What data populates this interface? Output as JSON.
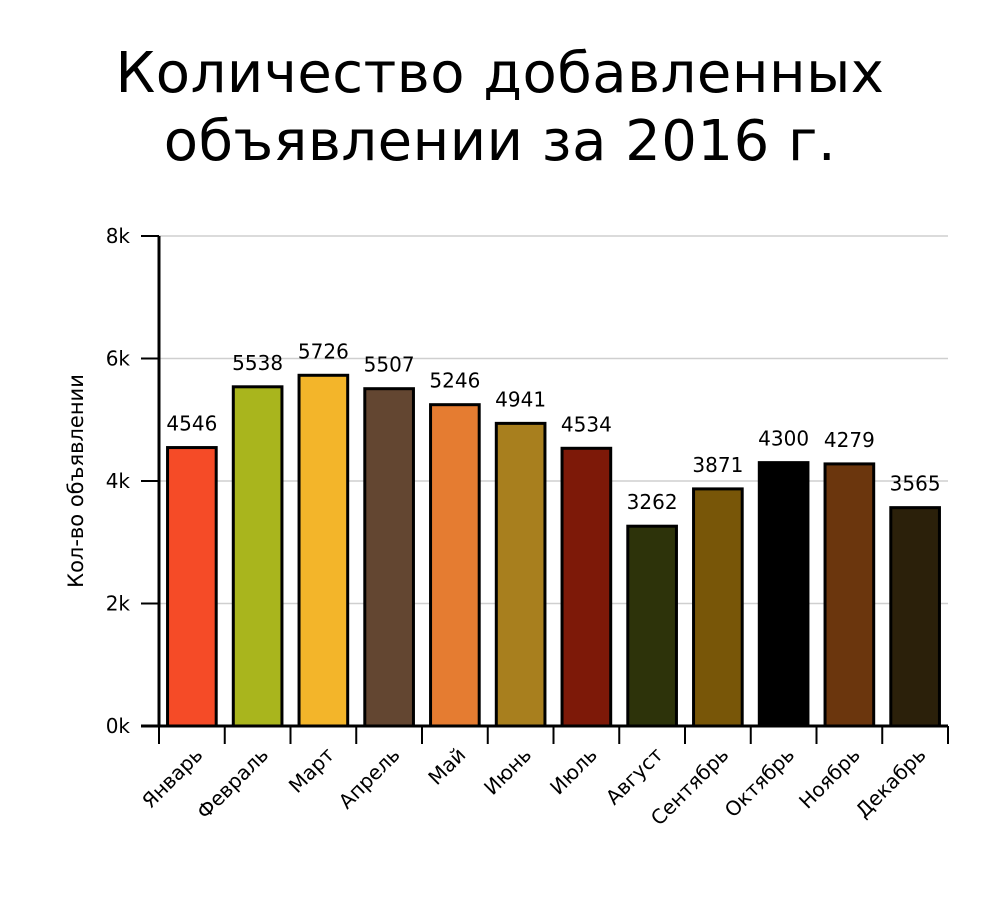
{
  "chart_data": {
    "type": "bar",
    "title_lines": [
      "Количество добавленных",
      "объявлении за 2016 г."
    ],
    "ylabel": "Кол-во объявлении",
    "xlabel": "",
    "categories": [
      "Январь",
      "Февраль",
      "Март",
      "Апрель",
      "Май",
      "Июнь",
      "Июль",
      "Август",
      "Сентябрь",
      "Октябрь",
      "Ноябрь",
      "Декабрь"
    ],
    "values": [
      4546,
      5538,
      5726,
      5507,
      5246,
      4941,
      4534,
      3262,
      3871,
      4300,
      4279,
      3565
    ],
    "value_labels": [
      "4546",
      "5538",
      "5726",
      "5507",
      "5246",
      "4941",
      "4534",
      "3262",
      "3871",
      "4300",
      "4279",
      "3565"
    ],
    "colors": [
      "#f54b27",
      "#a9b51d",
      "#f3b52a",
      "#634631",
      "#e57c31",
      "#a87f1e",
      "#7d1908",
      "#2d330a",
      "#785608",
      "#000000",
      "#6b360d",
      "#2b200a"
    ],
    "ylim": [
      0,
      8000
    ],
    "yticks": [
      0,
      2000,
      4000,
      6000,
      8000
    ],
    "ytick_labels": [
      "0k",
      "2k",
      "4k",
      "6k",
      "8k"
    ],
    "grid": true,
    "legend": "none"
  }
}
